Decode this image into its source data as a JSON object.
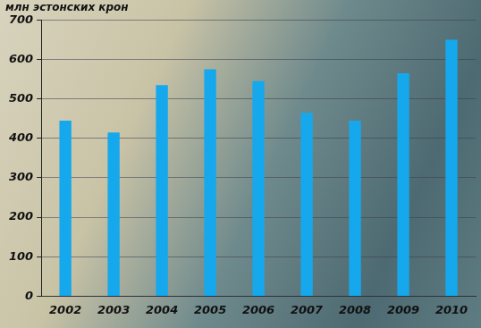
{
  "chart_data": {
    "type": "bar",
    "y_label": "млн эстонских крон",
    "categories": [
      "2002",
      "2003",
      "2004",
      "2005",
      "2006",
      "2007",
      "2008",
      "2009",
      "2010"
    ],
    "values": [
      445,
      415,
      535,
      575,
      545,
      465,
      445,
      565,
      650
    ],
    "color": "#16a8ec",
    "ylim": [
      0,
      700
    ],
    "yticks": [
      0,
      100,
      200,
      300,
      400,
      500,
      600,
      700
    ],
    "grid": true
  }
}
